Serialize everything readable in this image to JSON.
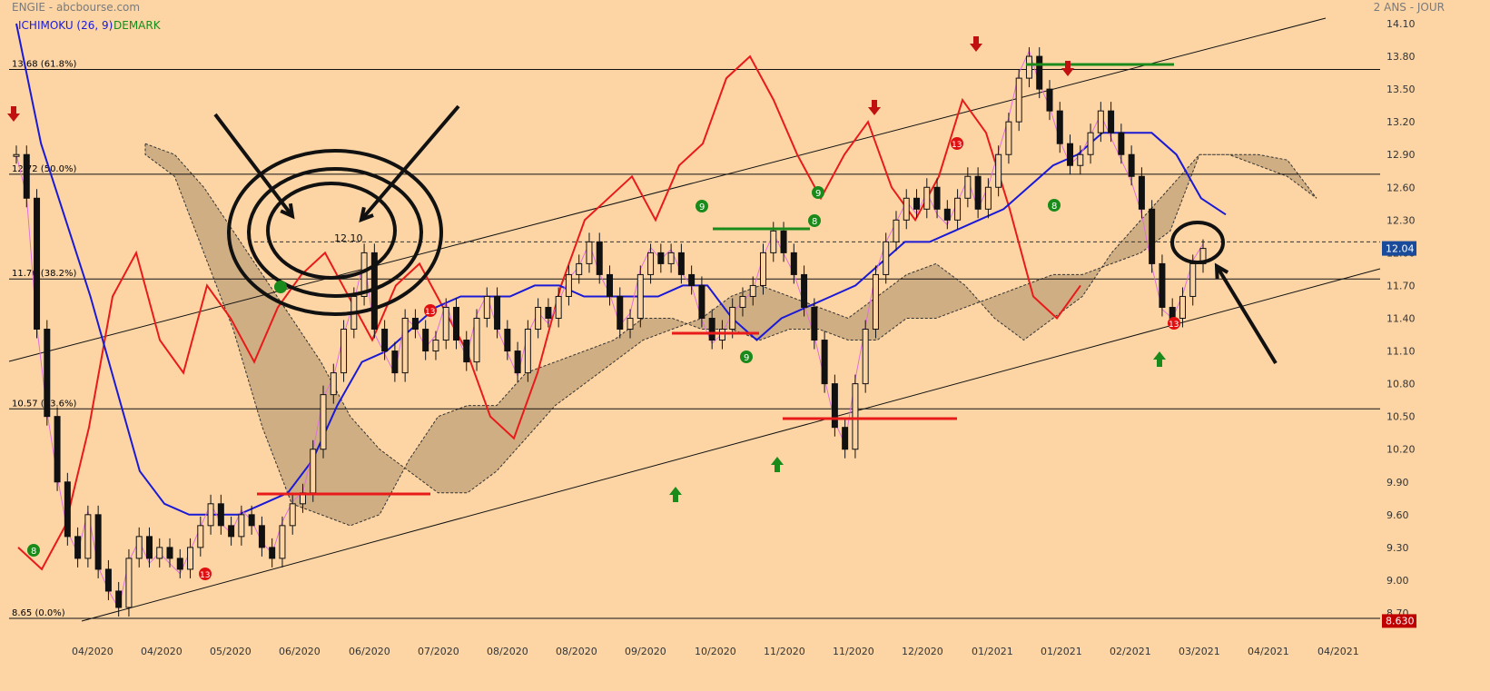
{
  "header": {
    "title": "ENGIE - abcbourse.com",
    "period": "2 ANS - JOUR"
  },
  "indicators": {
    "ichimoku": "ICHIMOKU (26, 9)",
    "demark": "DEMARK"
  },
  "annotations": {
    "circle_price": "12.10"
  },
  "colors": {
    "background": "#fdd5a5",
    "candle": "#000000",
    "kijun": "#1a1ad6",
    "tenkan": "#e070e0",
    "chikou": "#e81a1a",
    "cloud": "#c0a078",
    "green": "#1a8a1a",
    "red": "#d01010",
    "current_price_box": "#1a4a9a",
    "low_price_box": "#c00000"
  },
  "chart_data": {
    "type": "candlestick",
    "title": "ENGIE - abcbourse.com",
    "subtitle": "2 ANS - JOUR",
    "ylim": [
      8.55,
      14.2
    ],
    "y_ticks": [
      "14.10",
      "13.80",
      "13.50",
      "13.20",
      "12.90",
      "12.60",
      "12.30",
      "12.00",
      "11.70",
      "11.40",
      "11.10",
      "10.80",
      "10.50",
      "10.20",
      "9.90",
      "9.60",
      "9.30",
      "9.00",
      "8.70"
    ],
    "x_ticks": [
      "04/2020",
      "04/2020",
      "05/2020",
      "06/2020",
      "06/2020",
      "07/2020",
      "08/2020",
      "08/2020",
      "09/2020",
      "10/2020",
      "11/2020",
      "11/2020",
      "12/2020",
      "01/2021",
      "01/2021",
      "02/2021",
      "03/2021",
      "04/2021",
      "04/2021"
    ],
    "current_price": "12.04",
    "low_price": "8.630",
    "fibonacci_levels": [
      {
        "label": "13.68  (61.8%)",
        "value": 13.68
      },
      {
        "label": "12.72  (50.0%)",
        "value": 12.72
      },
      {
        "label": "11.76  (38.2%)",
        "value": 11.76
      },
      {
        "label": "10.57  (23.6%)",
        "value": 10.57
      },
      {
        "label": "8.65  (0.0%)",
        "value": 8.65
      }
    ],
    "reference_dashed": 12.1,
    "series": [
      {
        "name": "close",
        "values": [
          12.9,
          12.5,
          11.3,
          10.5,
          9.9,
          9.4,
          9.2,
          9.6,
          9.1,
          8.9,
          8.75,
          9.2,
          9.4,
          9.2,
          9.3,
          9.2,
          9.1,
          9.3,
          9.5,
          9.7,
          9.5,
          9.4,
          9.6,
          9.5,
          9.3,
          9.2,
          9.5,
          9.7,
          9.8,
          10.2,
          10.7,
          10.9,
          11.3,
          11.6,
          12.0,
          11.3,
          11.1,
          10.9,
          11.4,
          11.3,
          11.1,
          11.2,
          11.5,
          11.2,
          11.0,
          11.4,
          11.6,
          11.3,
          11.1,
          10.9,
          11.3,
          11.5,
          11.4,
          11.6,
          11.8,
          11.9,
          12.1,
          11.8,
          11.6,
          11.3,
          11.4,
          11.8,
          12.0,
          11.9,
          12.0,
          11.8,
          11.7,
          11.4,
          11.2,
          11.3,
          11.5,
          11.6,
          11.7,
          12.0,
          12.2,
          12.0,
          11.8,
          11.5,
          11.2,
          10.8,
          10.4,
          10.2,
          10.8,
          11.3,
          11.8,
          12.1,
          12.3,
          12.5,
          12.4,
          12.6,
          12.4,
          12.3,
          12.5,
          12.7,
          12.4,
          12.6,
          12.9,
          13.2,
          13.6,
          13.8,
          13.5,
          13.3,
          13.0,
          12.8,
          12.9,
          13.1,
          13.3,
          13.1,
          12.9,
          12.7,
          12.4,
          11.9,
          11.5,
          11.4,
          11.6,
          11.9,
          12.04
        ]
      },
      {
        "name": "kijun",
        "values": [
          14.1,
          13.0,
          12.3,
          11.6,
          10.8,
          10.0,
          9.7,
          9.6,
          9.6,
          9.6,
          9.7,
          9.8,
          10.1,
          10.6,
          11.0,
          11.1,
          11.3,
          11.5,
          11.6,
          11.6,
          11.6,
          11.7,
          11.7,
          11.6,
          11.6,
          11.6,
          11.6,
          11.7,
          11.7,
          11.4,
          11.2,
          11.4,
          11.5,
          11.6,
          11.7,
          11.9,
          12.1,
          12.1,
          12.2,
          12.3,
          12.4,
          12.6,
          12.8,
          12.9,
          13.1,
          13.1,
          13.1,
          12.9,
          12.5,
          12.35
        ]
      },
      {
        "name": "chikou",
        "values": [
          9.3,
          9.1,
          9.5,
          10.4,
          11.6,
          12.0,
          11.2,
          10.9,
          11.7,
          11.4,
          11.0,
          11.5,
          11.8,
          12.0,
          11.6,
          11.2,
          11.7,
          11.9,
          11.5,
          11.1,
          10.5,
          10.3,
          10.9,
          11.7,
          12.3,
          12.5,
          12.7,
          12.3,
          12.8,
          13.0,
          13.6,
          13.8,
          13.4,
          12.9,
          12.5,
          12.9,
          13.2,
          12.6,
          12.3,
          12.7,
          13.4,
          13.1,
          12.4,
          11.6,
          11.4,
          11.7
        ]
      },
      {
        "name": "senkou_a",
        "values": [
          13.0,
          12.9,
          12.6,
          12.2,
          11.8,
          11.4,
          11.0,
          10.5,
          10.2,
          10.0,
          9.8,
          9.8,
          10.0,
          10.3,
          10.6,
          10.8,
          11.0,
          11.2,
          11.3,
          11.4,
          11.6,
          11.7,
          11.6,
          11.5,
          11.4,
          11.6,
          11.8,
          11.9,
          11.7,
          11.4,
          11.2,
          11.4,
          11.6,
          12.0,
          12.3,
          12.6,
          12.9,
          12.9,
          12.8,
          12.7,
          12.5
        ]
      },
      {
        "name": "senkou_b",
        "values": [
          12.9,
          12.7,
          12.0,
          11.3,
          10.4,
          9.7,
          9.6,
          9.5,
          9.6,
          10.1,
          10.5,
          10.6,
          10.6,
          10.9,
          11.0,
          11.1,
          11.2,
          11.4,
          11.4,
          11.3,
          11.3,
          11.2,
          11.3,
          11.3,
          11.2,
          11.2,
          11.4,
          11.4,
          11.5,
          11.6,
          11.7,
          11.8,
          11.8,
          11.9,
          12.0,
          12.2,
          12.9,
          12.9,
          12.9,
          12.85,
          12.5
        ]
      }
    ]
  }
}
